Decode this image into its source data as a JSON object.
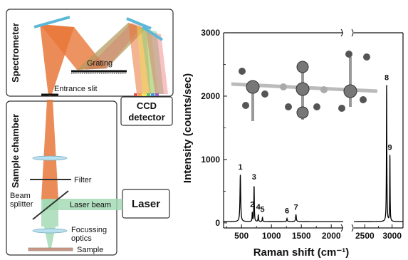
{
  "schematic": {
    "spectrometer_label": "Spectrometer",
    "grating_label": "Grating",
    "entrance_slit_label": "Entrance slit",
    "ccd_label_line1": "CCD",
    "ccd_label_line2": "detector",
    "sample_chamber_label": "Sample chamber",
    "filter_label": "Filter",
    "beam_splitter_line1": "Beam",
    "beam_splitter_line2": "splitter",
    "laser_beam_label": "Laser beam",
    "laser_label": "Laser",
    "focussing_line1": "Focussing",
    "focussing_line2": "optics",
    "sample_label": "Sample",
    "colors": {
      "orange_beam": "#e8773a",
      "green_beam": "#9fd8b0",
      "mirror_blue": "#5bb8d8",
      "ccd_pixels": [
        "#e85050",
        "#f0a040",
        "#f0e050",
        "#60c060",
        "#4090e0",
        "#9060c0"
      ]
    }
  },
  "chart_data": {
    "type": "line",
    "xlabel": "Raman shift (cm⁻¹)",
    "ylabel": "Intensity (counts/sec)",
    "ylim": [
      -80,
      3000
    ],
    "axis_break": true,
    "segments": [
      {
        "xlim": [
          200,
          2200
        ],
        "xticks": [
          500,
          1000,
          1500,
          2000
        ]
      },
      {
        "xlim": [
          2300,
          3200
        ],
        "xticks": [
          2500,
          3000
        ]
      }
    ],
    "yticks": [
      0,
      1000,
      2000,
      3000
    ],
    "baseline": 20,
    "peaks": [
      {
        "label": "1",
        "x": 480,
        "y": 760,
        "width": 14
      },
      {
        "label": "2",
        "x": 680,
        "y": 160,
        "width": 8
      },
      {
        "label": "3",
        "x": 710,
        "y": 600,
        "width": 9
      },
      {
        "label": "4",
        "x": 780,
        "y": 130,
        "width": 9
      },
      {
        "label": "5",
        "x": 850,
        "y": 90,
        "width": 9
      },
      {
        "label": "6",
        "x": 1260,
        "y": 70,
        "width": 12
      },
      {
        "label": "7",
        "x": 1410,
        "y": 130,
        "width": 14
      },
      {
        "label": "8",
        "x": 2900,
        "y": 2170,
        "width": 9
      },
      {
        "label": "9",
        "x": 2960,
        "y": 1060,
        "width": 8
      }
    ],
    "series_color": "#000000"
  }
}
